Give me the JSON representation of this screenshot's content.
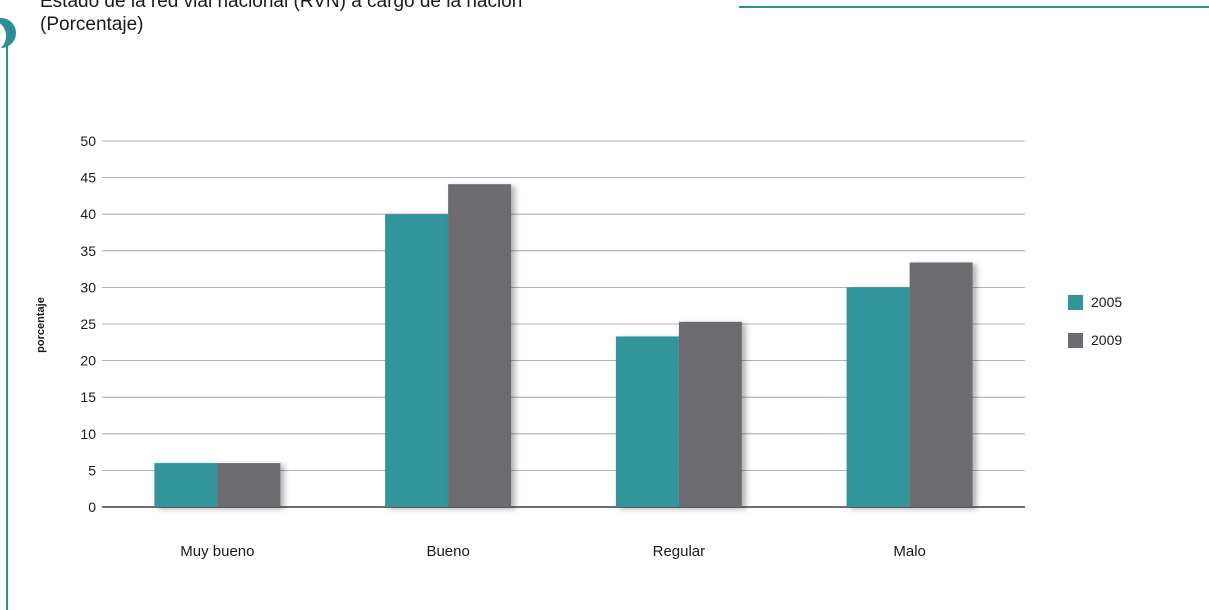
{
  "title": "Estado de la red vial nacional (RVN) a cargo de la nación",
  "subtitle": "(Porcentaje)",
  "colors": {
    "accent": "#2b8f94",
    "s2005": "#32959b",
    "s2009": "#6c6c70",
    "grid": "#9a9a9a"
  },
  "chart_data": {
    "type": "bar",
    "categories": [
      "Muy bueno",
      "Bueno",
      "Regular",
      "Malo"
    ],
    "series": [
      {
        "name": "2005",
        "values": [
          6,
          40,
          23.3,
          30
        ]
      },
      {
        "name": "2009",
        "values": [
          6,
          44.1,
          25.3,
          33.4
        ]
      }
    ],
    "ylabel": "porcentaje",
    "xlabel": "",
    "ylim": [
      0,
      50
    ],
    "yticks": [
      0,
      5,
      10,
      15,
      20,
      25,
      30,
      35,
      40,
      45,
      50
    ],
    "grid": true,
    "legend_position": "right"
  }
}
